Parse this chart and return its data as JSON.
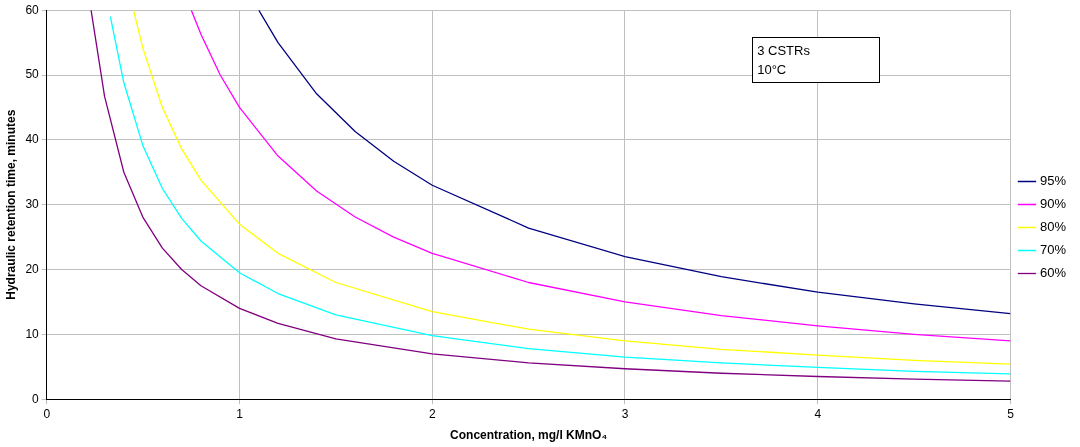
{
  "chart_data": {
    "type": "line",
    "xlabel": "Concentration, mg/l KMnO₄",
    "ylabel": "Hydraulic retention time, minutes",
    "xlim": [
      0,
      5
    ],
    "xticks": [
      0,
      1,
      2,
      3,
      4,
      5
    ],
    "ylim": [
      0,
      60
    ],
    "yticks": [
      0,
      10,
      20,
      30,
      40,
      50,
      60
    ],
    "grid": true,
    "legend": "right",
    "marker": "none",
    "line_style": "solid",
    "annotations": [
      "3 CSTRs",
      "10°C"
    ],
    "series": [
      {
        "name": "95%",
        "color": "#000080",
        "x": [
          1.1,
          1.2,
          1.4,
          1.6,
          1.8,
          2,
          2.5,
          3,
          3.5,
          4,
          4.5,
          5
        ],
        "values": [
          60,
          55,
          47.1,
          41.3,
          36.7,
          33,
          26.4,
          22,
          18.9,
          16.5,
          14.7,
          13.2
        ]
      },
      {
        "name": "90%",
        "color": "#ff00ff",
        "x": [
          0.75,
          0.8,
          0.9,
          1,
          1.2,
          1.4,
          1.6,
          1.8,
          2,
          2.5,
          3,
          3.5,
          4,
          4.5,
          5
        ],
        "values": [
          60,
          56.3,
          50,
          45,
          37.5,
          32.1,
          28.1,
          25,
          22.5,
          18,
          15,
          12.9,
          11.3,
          10,
          9
        ]
      },
      {
        "name": "80%",
        "color": "#ffff00",
        "x": [
          0.45,
          0.5,
          0.6,
          0.7,
          0.8,
          1,
          1.2,
          1.5,
          2,
          2.5,
          3,
          3.5,
          4,
          4.5,
          5
        ],
        "values": [
          60,
          54,
          45,
          38.6,
          33.8,
          27,
          22.5,
          18,
          13.5,
          10.8,
          9,
          7.7,
          6.8,
          6,
          5.4
        ]
      },
      {
        "name": "70%",
        "color": "#00ffff",
        "x": [
          0.33,
          0.4,
          0.5,
          0.6,
          0.7,
          0.8,
          1,
          1.2,
          1.5,
          2,
          2.5,
          3,
          3.5,
          4,
          4.5,
          5
        ],
        "values": [
          59,
          48.8,
          39,
          32.5,
          27.9,
          24.4,
          19.5,
          16.3,
          13,
          9.8,
          7.8,
          6.5,
          5.6,
          4.9,
          4.3,
          3.9
        ]
      },
      {
        "name": "60%",
        "color": "#800080",
        "x": [
          0.23,
          0.3,
          0.4,
          0.5,
          0.6,
          0.7,
          0.8,
          1,
          1.2,
          1.5,
          2,
          2.5,
          3,
          3.5,
          4,
          4.5,
          5
        ],
        "values": [
          60,
          46.7,
          35,
          28,
          23.3,
          20,
          17.5,
          14,
          11.7,
          9.3,
          7,
          5.6,
          4.7,
          4,
          3.5,
          3.1,
          2.8
        ]
      }
    ]
  }
}
